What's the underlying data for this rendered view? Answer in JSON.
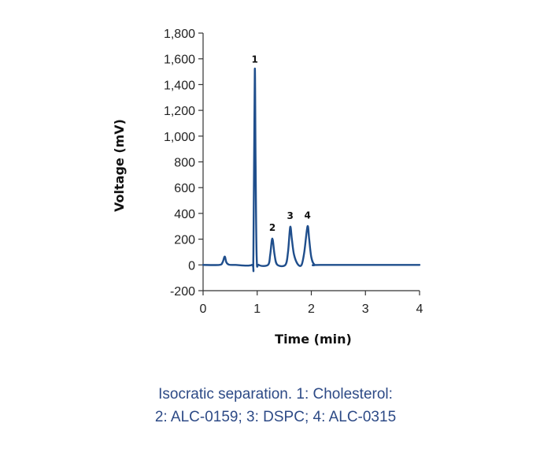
{
  "chart_data": {
    "type": "line",
    "xlabel": "Time (min)",
    "ylabel": "Voltage (mV)",
    "xlim": [
      0,
      4
    ],
    "ylim": [
      -200,
      1800
    ],
    "x_ticks": [
      "0",
      "1",
      "2",
      "3",
      "4"
    ],
    "y_ticks": [
      "-200",
      "0",
      "200",
      "400",
      "600",
      "800",
      "1,000",
      "1,200",
      "1,400",
      "1,600",
      "1,800"
    ],
    "grid": false,
    "line_color": "#1f4e8c",
    "series": [
      {
        "x": [
          0,
          0.3,
          0.36,
          0.4,
          0.43,
          0.48,
          0.6,
          0.9,
          0.93,
          0.955,
          0.97,
          0.99,
          1.03,
          1.2,
          1.24,
          1.28,
          1.32,
          1.37,
          1.52,
          1.57,
          1.61,
          1.64,
          1.68,
          1.75,
          1.82,
          1.87,
          1.93,
          1.96,
          2.0,
          2.06,
          2.2,
          4.0
        ],
        "y": [
          0,
          0,
          20,
          65,
          20,
          2,
          0,
          0,
          80,
          1510,
          800,
          60,
          0,
          0,
          80,
          205,
          80,
          2,
          0,
          100,
          295,
          200,
          80,
          5,
          0,
          100,
          300,
          200,
          60,
          2,
          0,
          0
        ]
      }
    ],
    "peak_labels": [
      {
        "label": "1",
        "x": 0.955,
        "y": 1510
      },
      {
        "label": "2",
        "x": 1.28,
        "y": 205
      },
      {
        "label": "3",
        "x": 1.61,
        "y": 295
      },
      {
        "label": "4",
        "x": 1.93,
        "y": 300
      }
    ]
  },
  "caption": {
    "line1": "Isocratic separation. 1: Cholesterol:",
    "line2": "2: ALC-0159; 3: DSPC; 4: ALC-0315"
  }
}
